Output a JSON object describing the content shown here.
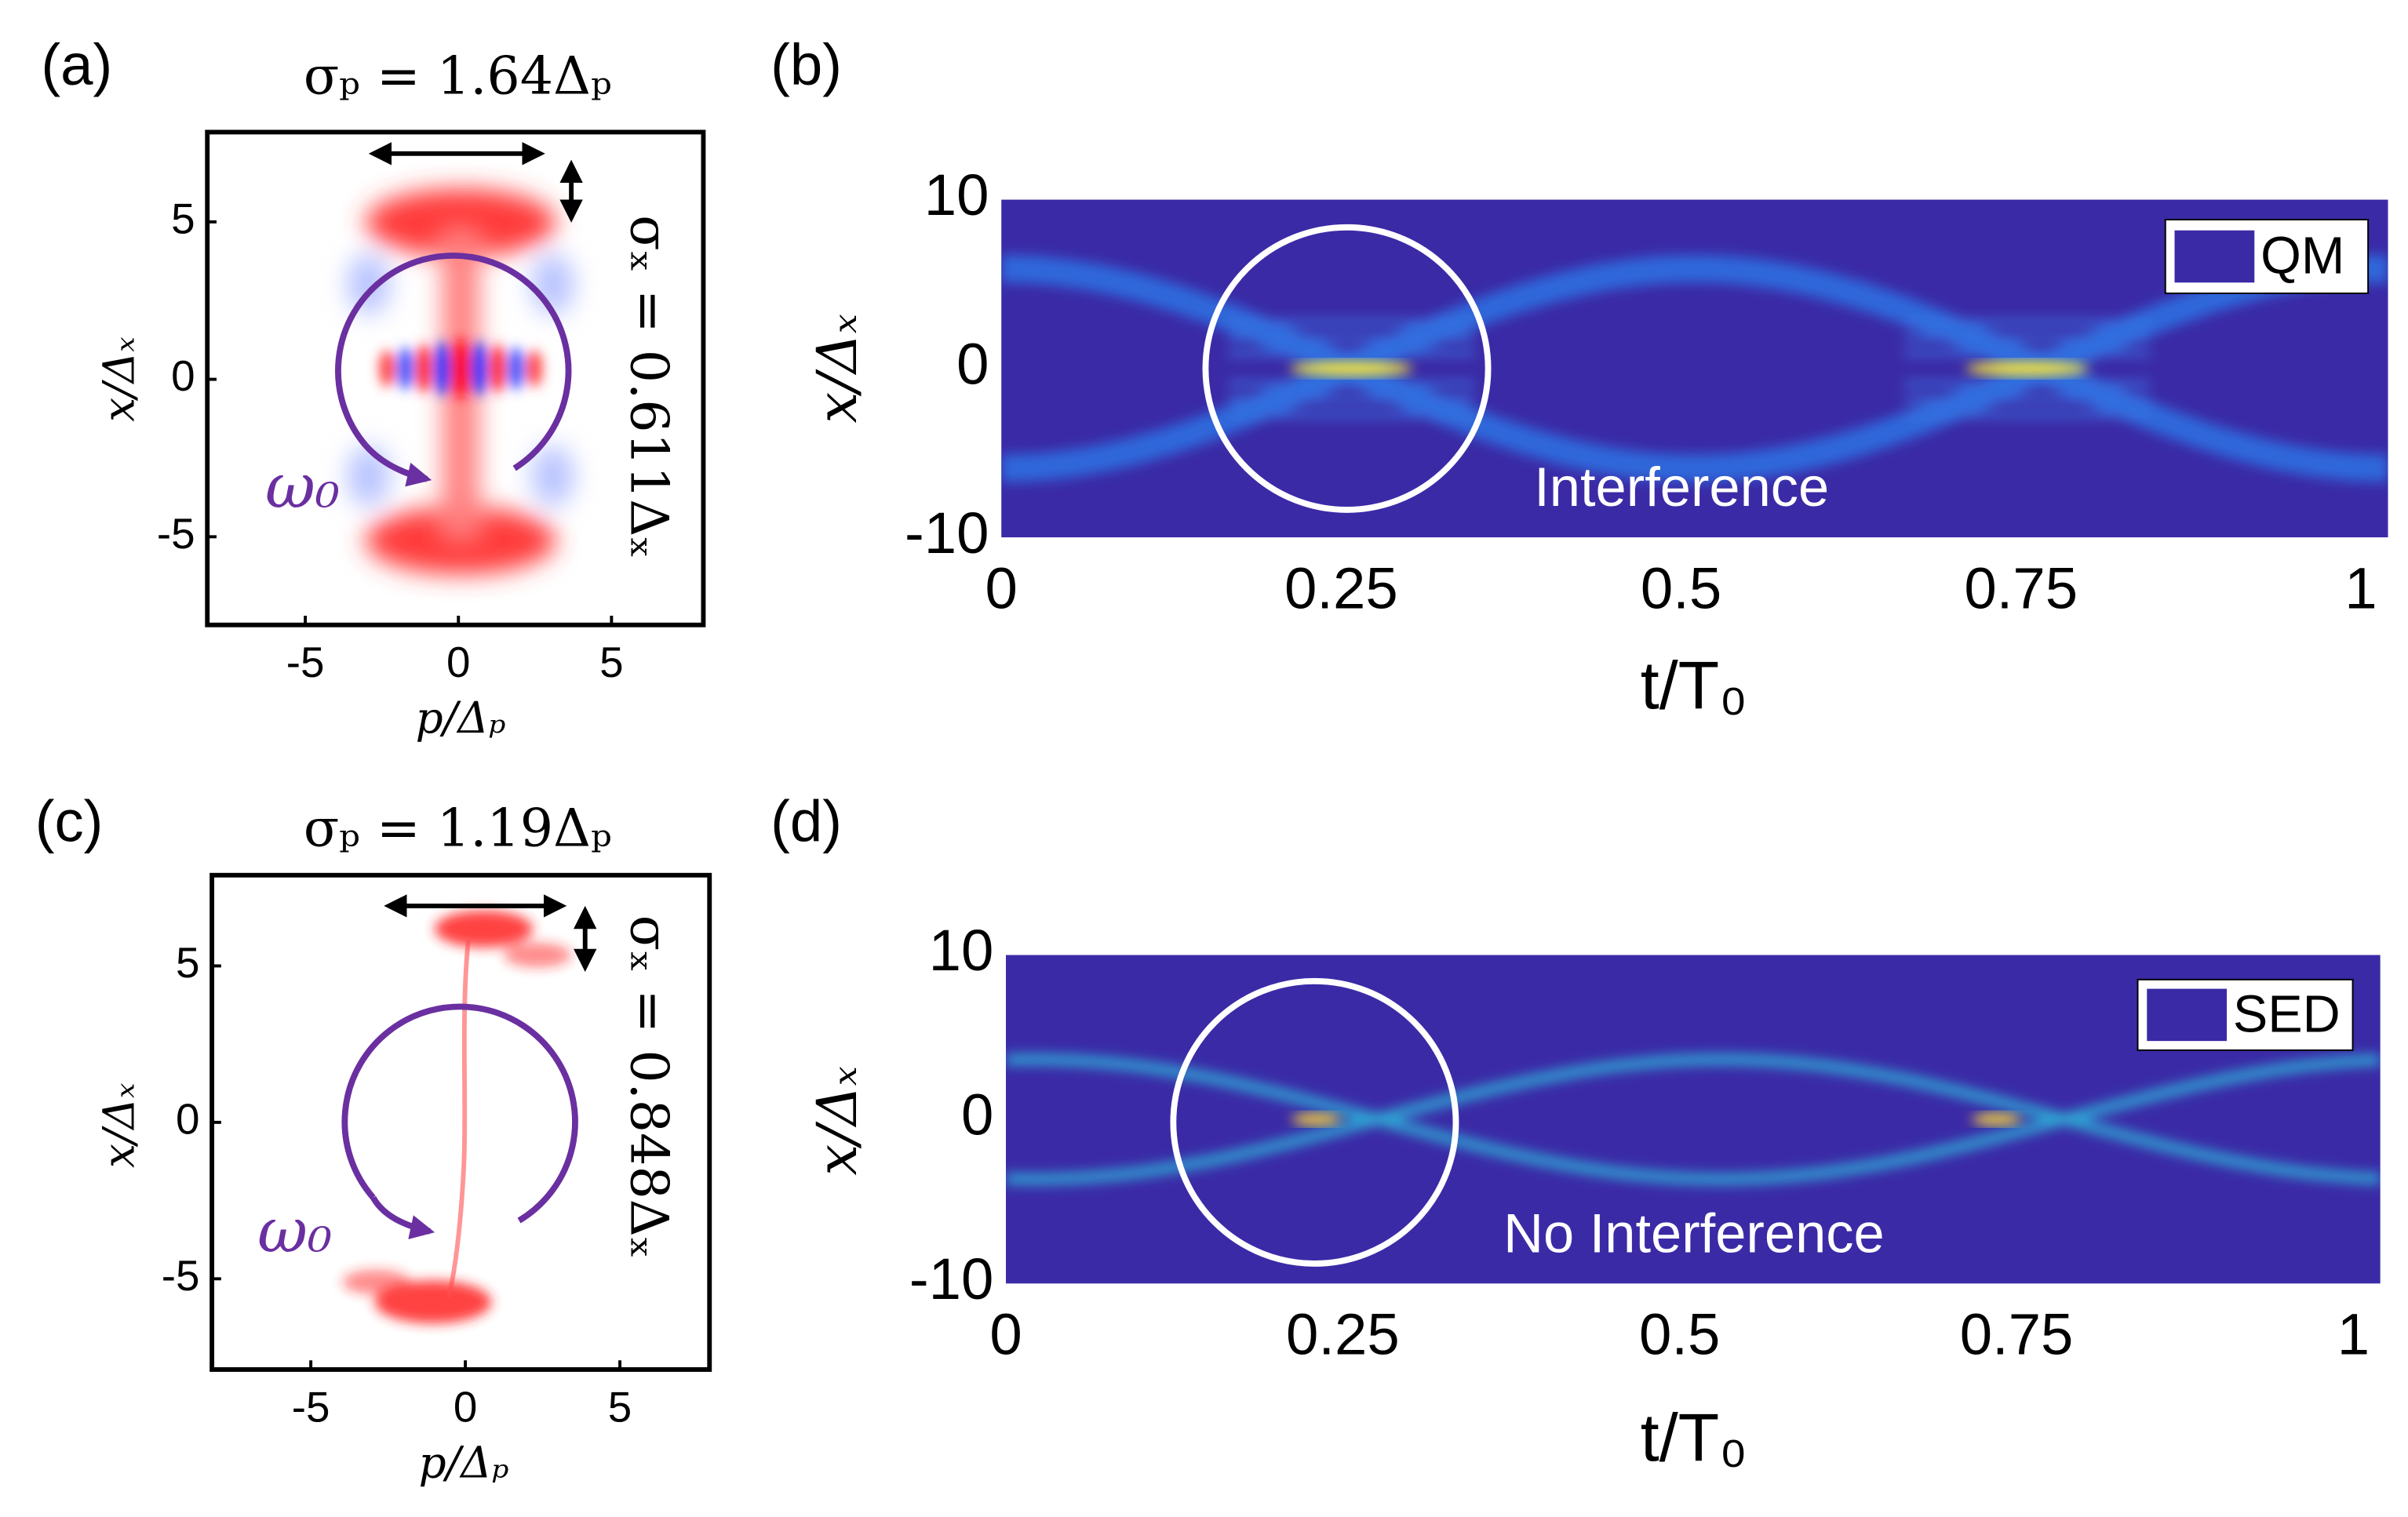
{
  "chart_data": [
    {
      "type": "heatmap",
      "panel": "(a)",
      "title": "σₚ = 1.64Δₚ",
      "xlabel": "p/Δₚ",
      "ylabel": "x/Δₓ",
      "annotations": [
        "σₓ = 0.611Δₓ",
        "ω₀"
      ],
      "xlim": [
        -8.2,
        8
      ],
      "xticks": [
        -5,
        0,
        5
      ],
      "ylim": [
        -7.8,
        7.85
      ],
      "yticks": [
        -5,
        0,
        5
      ]
    },
    {
      "type": "heatmap",
      "panel": "(b)",
      "xlabel": "t/T₀",
      "ylabel": "x/Δₓ",
      "legend": "QM",
      "annotations": [
        "Interference"
      ],
      "xlim": [
        0,
        1.02
      ],
      "xticks": [
        0,
        0.25,
        0.5,
        0.75,
        1
      ],
      "ylim": [
        -10,
        10
      ],
      "yticks": [
        -10,
        0,
        10
      ]
    },
    {
      "type": "heatmap",
      "panel": "(c)",
      "title": "σₚ = 1.19Δₚ",
      "xlabel": "p/Δₚ",
      "ylabel": "x/Δₓ",
      "annotations": [
        "σₓ = 0.848Δₓ",
        "ω₀"
      ],
      "xlim": [
        -8.2,
        7.9
      ],
      "xticks": [
        -5,
        0,
        5
      ],
      "ylim": [
        -7.9,
        7.9
      ],
      "yticks": [
        -5,
        0,
        5
      ]
    },
    {
      "type": "heatmap",
      "panel": "(d)",
      "xlabel": "t/T₀",
      "ylabel": "x/Δₓ",
      "legend": "SED",
      "annotations": [
        "No Interference"
      ],
      "xlim": [
        0,
        1.02
      ],
      "xticks": [
        0,
        0.25,
        0.5,
        0.75,
        1
      ],
      "ylim": [
        -10,
        10
      ],
      "yticks": [
        -10,
        0,
        10
      ]
    }
  ]
}
